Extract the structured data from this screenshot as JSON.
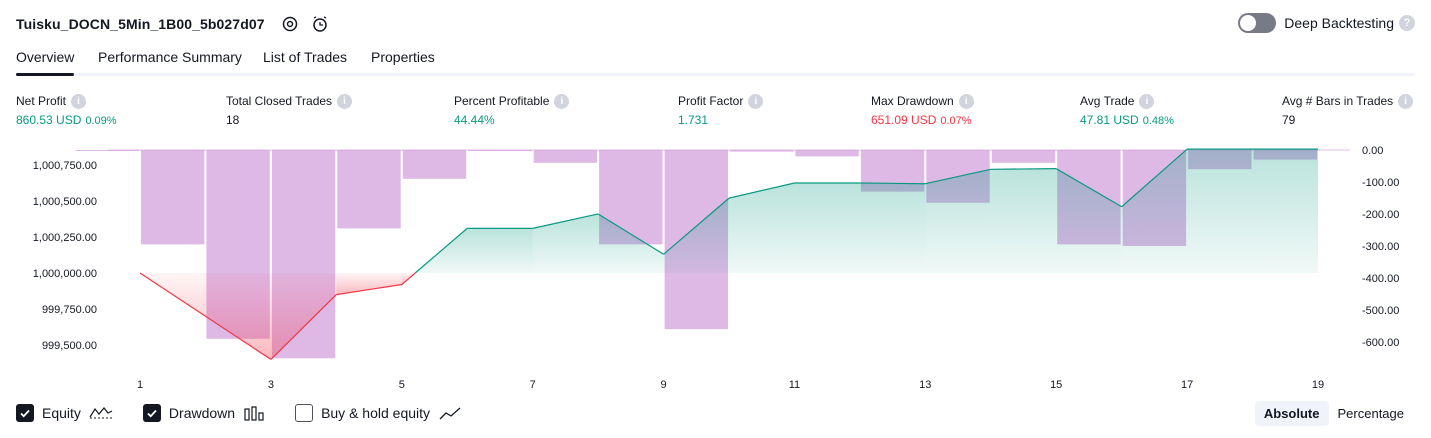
{
  "header": {
    "strategy_name": "Tuisku_DOCN_5Min_1B00_5b027d07",
    "deep_backtesting_label": "Deep Backtesting",
    "help_icon": "question-icon",
    "settings_icon": "gear-icon",
    "add_alert_icon": "alarm-plus-icon"
  },
  "tabs": [
    {
      "label": "Overview",
      "active": true
    },
    {
      "label": "Performance Summary",
      "active": false
    },
    {
      "label": "List of Trades",
      "active": false
    },
    {
      "label": "Properties",
      "active": false
    }
  ],
  "metrics": [
    {
      "label": "Net Profit",
      "value": "860.53 USD",
      "pct": "0.09%",
      "color": "#089981"
    },
    {
      "label": "Total Closed Trades",
      "value": "18",
      "pct": "",
      "color": "#131722"
    },
    {
      "label": "Percent Profitable",
      "value": "44.44%",
      "pct": "",
      "color": "#089981"
    },
    {
      "label": "Profit Factor",
      "value": "1.731",
      "pct": "",
      "color": "#089981"
    },
    {
      "label": "Max Drawdown",
      "value": "651.09 USD",
      "pct": "0.07%",
      "color": "#f23645"
    },
    {
      "label": "Avg Trade",
      "value": "47.81 USD",
      "pct": "0.48%",
      "color": "#089981"
    },
    {
      "label": "Avg # Bars in Trades",
      "value": "79",
      "pct": "",
      "color": "#131722"
    }
  ],
  "chart_data": {
    "type": "line",
    "x_tick_labels": [
      "1",
      "3",
      "5",
      "7",
      "9",
      "11",
      "13",
      "15",
      "17",
      "19"
    ],
    "xlim": [
      1,
      19
    ],
    "y_left_tick_labels": [
      "1,000,750.00",
      "1,000,500.00",
      "1,000,250.00",
      "1,000,000.00",
      "999,750.00",
      "999,500.00"
    ],
    "y_left_ticks": [
      1000750,
      1000500,
      1000250,
      1000000,
      999750,
      999500
    ],
    "y_right_tick_labels": [
      "0.00",
      "-100.00",
      "-200.00",
      "-300.00",
      "-400.00",
      "-500.00",
      "-600.00"
    ],
    "y_right_ticks": [
      0,
      -100,
      -200,
      -300,
      -400,
      -500,
      -600
    ],
    "equity": {
      "name": "Equity",
      "x": [
        1,
        3,
        4,
        5,
        6,
        7,
        8,
        9,
        10,
        11,
        12,
        13,
        14,
        15,
        16,
        17,
        18,
        19
      ],
      "values": [
        1000000,
        999400,
        999850,
        999920,
        1000310,
        1000310,
        1000410,
        1000130,
        1000520,
        1000625,
        1000625,
        1000620,
        1000720,
        1000725,
        1000460,
        1000860,
        1000860,
        1000860
      ],
      "baseline": 1000000,
      "color_up": "#089981",
      "color_down": "#f23645"
    },
    "drawdown": {
      "name": "Drawdown",
      "x": [
        1,
        2,
        3,
        4,
        5,
        6,
        7,
        8,
        9,
        10,
        11,
        12,
        13,
        14,
        15,
        16,
        17,
        18,
        19
      ],
      "values": [
        -2,
        -295,
        -590,
        -651,
        -245,
        -90,
        0,
        -40,
        -295,
        -560,
        -5,
        -20,
        -130,
        -165,
        -40,
        -295,
        -300,
        -60,
        -30
      ],
      "color": "#ce93d8"
    },
    "legend_position": "bottom-left"
  },
  "legend": [
    {
      "label": "Equity",
      "checked": true,
      "icon": "equity-line-icon"
    },
    {
      "label": "Drawdown",
      "checked": true,
      "icon": "bars-icon"
    },
    {
      "label": "Buy & hold equity",
      "checked": false,
      "icon": "trend-line-icon"
    }
  ],
  "mode": {
    "absolute_label": "Absolute",
    "percentage_label": "Percentage",
    "active": "absolute"
  },
  "colors": {
    "positive": "#089981",
    "negative": "#f23645",
    "drawdown_bar": "#ce93d8"
  }
}
